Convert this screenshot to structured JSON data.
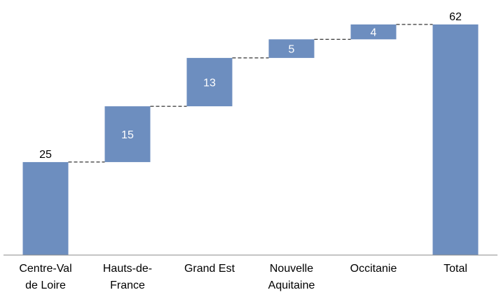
{
  "chart_data": {
    "type": "waterfall",
    "categories": [
      "Centre-Val de Loire",
      "Hauts-de-France",
      "Grand Est",
      "Nouvelle Aquitaine",
      "Occitanie",
      "Total"
    ],
    "values": [
      25,
      15,
      13,
      5,
      4,
      62
    ],
    "is_total": [
      false,
      false,
      false,
      false,
      false,
      true
    ],
    "color": "#6d8ebf"
  }
}
